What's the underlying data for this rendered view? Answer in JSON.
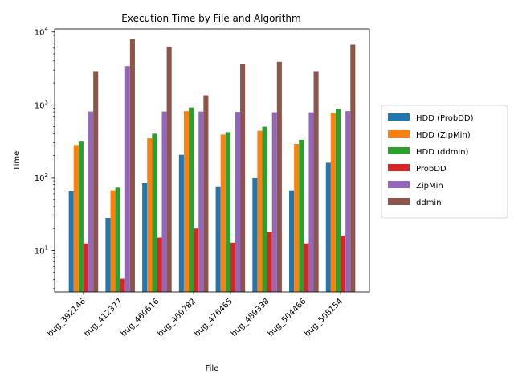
{
  "chart_data": {
    "type": "bar",
    "title": "Execution Time by File and Algorithm",
    "xlabel": "File",
    "ylabel": "Time",
    "yscale": "log",
    "ylim": [
      2.7,
      11000
    ],
    "y_ticks": [
      {
        "value": 10,
        "base": "10",
        "exp": "1"
      },
      {
        "value": 100,
        "base": "10",
        "exp": "2"
      },
      {
        "value": 1000,
        "base": "10",
        "exp": "3"
      },
      {
        "value": 10000,
        "base": "10",
        "exp": "4"
      }
    ],
    "categories": [
      "bug_392146",
      "bug_412377",
      "bug_460616",
      "bug_469782",
      "bug_476465",
      "bug_489338",
      "bug_504466",
      "bug_508154"
    ],
    "legend_position": "center-right, outside plot",
    "series": [
      {
        "name": "HDD (ProbDD)",
        "color": "#1f77b4",
        "values": [
          65,
          28,
          84,
          205,
          76,
          100,
          67,
          160
        ]
      },
      {
        "name": "HDD (ZipMin)",
        "color": "#ff7f0e",
        "values": [
          280,
          67,
          350,
          820,
          390,
          440,
          290,
          770
        ]
      },
      {
        "name": "HDD (ddmin)",
        "color": "#2ca02c",
        "values": [
          320,
          73,
          400,
          920,
          420,
          500,
          330,
          880
        ]
      },
      {
        "name": "ProbDD",
        "color": "#d62728",
        "values": [
          12.5,
          4.1,
          15,
          20,
          12.8,
          18,
          12.5,
          16
        ]
      },
      {
        "name": "ZipMin",
        "color": "#9467bd",
        "values": [
          810,
          3400,
          810,
          810,
          800,
          790,
          790,
          820
        ]
      },
      {
        "name": "ddmin",
        "color": "#8c564b",
        "values": [
          2900,
          7900,
          6300,
          1350,
          3600,
          3900,
          2900,
          6700
        ]
      }
    ]
  }
}
